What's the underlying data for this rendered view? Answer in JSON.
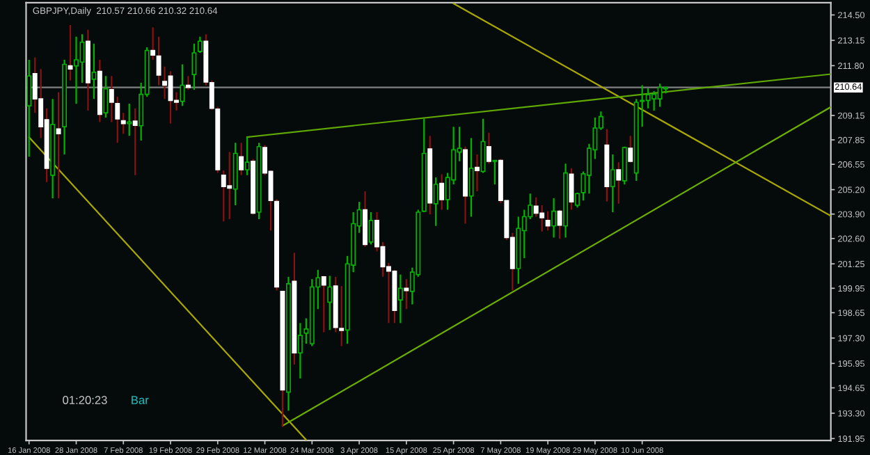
{
  "chart_data": {
    "type": "candlestick",
    "title": "GBPJPY,Daily  210.57 210.66 210.32 210.64",
    "annotations": [
      "01:20:23",
      "Bar"
    ],
    "categories": [
      "16 Jan 2008",
      null,
      null,
      null,
      null,
      null,
      null,
      null,
      "28 Jan 2008",
      null,
      null,
      null,
      null,
      null,
      null,
      null,
      "7 Feb 2008",
      null,
      null,
      null,
      null,
      null,
      null,
      null,
      "19 Feb 2008",
      null,
      null,
      null,
      null,
      null,
      null,
      null,
      "29 Feb 2008",
      null,
      null,
      null,
      null,
      null,
      null,
      null,
      "12 Mar 2008",
      null,
      null,
      null,
      null,
      null,
      null,
      null,
      "24 Mar 2008",
      null,
      null,
      null,
      null,
      null,
      null,
      null,
      "3 Apr 2008",
      null,
      null,
      null,
      null,
      null,
      null,
      null,
      "15 Apr 2008",
      null,
      null,
      null,
      null,
      null,
      null,
      null,
      "25 Apr 2008",
      null,
      null,
      null,
      null,
      null,
      null,
      null,
      "7 May 2008",
      null,
      null,
      null,
      null,
      null,
      null,
      null,
      "19 May 2008",
      null,
      null,
      null,
      null,
      null,
      null,
      null,
      "29 May 2008",
      null,
      null,
      null,
      null,
      null,
      null,
      null,
      "10 Jun 2008",
      null,
      null,
      null,
      null,
      null,
      null,
      null,
      null,
      null,
      null,
      null,
      null,
      null,
      null,
      null,
      null,
      null,
      null,
      null,
      null,
      null,
      null,
      null,
      null,
      null,
      null,
      null,
      null,
      null,
      null,
      null,
      null
    ],
    "ohlc": [
      [
        209.66,
        212.11,
        206.95,
        211.25
      ],
      [
        211.38,
        212.24,
        209.29,
        210.03
      ],
      [
        210.03,
        211.62,
        207.94,
        208.55
      ],
      [
        208.92,
        209.53,
        205.6,
        206.34
      ],
      [
        205.97,
        210.03,
        204.74,
        208.67
      ],
      [
        208.43,
        210.39,
        204.74,
        208.18
      ],
      [
        208.55,
        212.11,
        207.07,
        211.87
      ],
      [
        211.79,
        213.96,
        211.01,
        211.62
      ],
      [
        211.79,
        213.34,
        209.78,
        212.11
      ],
      [
        211.99,
        213.47,
        210.89,
        213.05
      ],
      [
        213.1,
        213.71,
        209.41,
        210.89
      ],
      [
        211.08,
        212.97,
        210.03,
        211.45
      ],
      [
        211.5,
        212.11,
        208.8,
        209.21
      ],
      [
        209.29,
        211.25,
        209.04,
        210.57
      ],
      [
        210.52,
        211.25,
        208.8,
        209.85
      ],
      [
        209.78,
        210.15,
        207.69,
        208.97
      ],
      [
        208.87,
        209.29,
        208.18,
        208.72
      ],
      [
        208.72,
        209.78,
        208.06,
        208.8
      ],
      [
        208.85,
        209.53,
        205.97,
        208.62
      ],
      [
        208.6,
        210.89,
        207.81,
        210.27
      ],
      [
        210.27,
        212.78,
        210.15,
        212.61
      ],
      [
        212.61,
        213.84,
        212.11,
        212.36
      ],
      [
        212.31,
        213.34,
        210.76,
        211.3
      ],
      [
        210.96,
        211.75,
        210.03,
        210.76
      ],
      [
        211.25,
        211.5,
        208.72,
        209.95
      ],
      [
        209.95,
        210.39,
        209.41,
        209.85
      ],
      [
        209.9,
        211.87,
        209.66,
        210.76
      ],
      [
        210.76,
        211.25,
        210.52,
        210.64
      ],
      [
        211.33,
        212.97,
        210.52,
        212.48
      ],
      [
        212.56,
        213.34,
        212.48,
        213.1
      ],
      [
        213.1,
        213.47,
        210.76,
        210.93
      ],
      [
        210.89,
        211.01,
        209.46,
        209.53
      ],
      [
        209.49,
        209.61,
        206.09,
        206.26
      ],
      [
        205.97,
        206.22,
        203.51,
        205.36
      ],
      [
        205.4,
        207.2,
        203.63,
        205.28
      ],
      [
        205.23,
        207.69,
        204.37,
        207.13
      ],
      [
        206.95,
        207.69,
        205.97,
        206.26
      ],
      [
        206.26,
        207.99,
        205.97,
        206.66
      ],
      [
        206.71,
        206.83,
        203.88,
        203.95
      ],
      [
        204.0,
        207.69,
        203.63,
        207.49
      ],
      [
        207.44,
        207.57,
        205.97,
        206.09
      ],
      [
        206.17,
        206.22,
        203.02,
        204.62
      ],
      [
        204.57,
        204.69,
        199.83,
        200.02
      ],
      [
        199.78,
        199.78,
        192.57,
        194.54
      ],
      [
        194.42,
        200.56,
        193.43,
        200.19
      ],
      [
        200.32,
        201.84,
        195.89,
        196.51
      ],
      [
        196.51,
        198.1,
        195.15,
        197.44
      ],
      [
        197.56,
        198.35,
        197.0,
        197.78
      ],
      [
        197.0,
        200.44,
        196.87,
        200.02
      ],
      [
        200.02,
        200.93,
        198.84,
        200.51
      ],
      [
        200.56,
        200.61,
        197.61,
        200.12
      ],
      [
        199.21,
        200.61,
        197.73,
        200.02
      ],
      [
        200.07,
        200.56,
        197.61,
        197.86
      ],
      [
        197.81,
        200.07,
        196.87,
        197.71
      ],
      [
        197.73,
        201.67,
        197.0,
        201.25
      ],
      [
        201.18,
        204.0,
        200.81,
        203.39
      ],
      [
        203.27,
        204.55,
        202.9,
        204.13
      ],
      [
        204.13,
        205.11,
        202.16,
        202.28
      ],
      [
        202.41,
        204.0,
        202.28,
        203.56
      ],
      [
        203.56,
        204.0,
        201.91,
        202.16
      ],
      [
        202.16,
        202.41,
        200.56,
        201.1
      ],
      [
        201.1,
        201.3,
        198.1,
        200.86
      ],
      [
        200.86,
        200.93,
        198.1,
        198.77
      ],
      [
        199.33,
        200.68,
        198.1,
        199.95
      ],
      [
        199.95,
        200.44,
        198.84,
        199.83
      ],
      [
        199.78,
        201.05,
        199.09,
        200.81
      ],
      [
        200.68,
        204.13,
        200.56,
        204.0
      ],
      [
        204.05,
        208.97,
        204.0,
        207.13
      ],
      [
        207.37,
        208.06,
        203.88,
        204.49
      ],
      [
        204.45,
        205.85,
        203.27,
        205.48
      ],
      [
        205.53,
        206.02,
        204.13,
        204.67
      ],
      [
        204.67,
        206.09,
        204.13,
        205.85
      ],
      [
        205.72,
        208.55,
        205.48,
        207.32
      ],
      [
        207.2,
        208.55,
        206.71,
        207.4
      ],
      [
        207.32,
        207.49,
        203.39,
        204.86
      ],
      [
        204.86,
        207.94,
        203.76,
        206.34
      ],
      [
        206.39,
        207.07,
        205.11,
        206.22
      ],
      [
        206.17,
        208.97,
        206.09,
        207.76
      ],
      [
        207.49,
        208.23,
        206.58,
        206.71
      ],
      [
        206.71,
        206.76,
        205.48,
        206.76
      ],
      [
        206.76,
        206.83,
        204.49,
        204.62
      ],
      [
        204.62,
        204.62,
        202.53,
        202.65
      ],
      [
        202.65,
        202.9,
        199.83,
        201.0
      ],
      [
        201.0,
        203.76,
        200.19,
        203.14
      ],
      [
        203.02,
        204.13,
        201.55,
        203.76
      ],
      [
        203.76,
        204.99,
        203.63,
        204.37
      ],
      [
        204.32,
        204.79,
        203.76,
        203.95
      ],
      [
        203.95,
        204.37,
        202.97,
        203.71
      ],
      [
        203.56,
        204.05,
        203.02,
        203.27
      ],
      [
        203.27,
        204.74,
        202.65,
        204.05
      ],
      [
        204.05,
        204.13,
        202.58,
        203.31
      ],
      [
        203.27,
        206.58,
        202.65,
        206.09
      ],
      [
        206.02,
        206.34,
        204.13,
        204.55
      ],
      [
        204.37,
        205.04,
        204.25,
        204.99
      ],
      [
        205.04,
        206.17,
        204.62,
        206.04
      ],
      [
        205.97,
        207.64,
        204.99,
        207.4
      ],
      [
        207.32,
        209.04,
        206.83,
        208.48
      ],
      [
        208.48,
        209.36,
        208.38,
        209.09
      ],
      [
        207.57,
        208.43,
        204.57,
        205.36
      ],
      [
        205.36,
        207.07,
        204.0,
        206.26
      ],
      [
        206.26,
        206.66,
        204.45,
        205.72
      ],
      [
        205.67,
        207.49,
        205.48,
        207.44
      ],
      [
        207.4,
        208.06,
        206.66,
        206.71
      ],
      [
        206.09,
        210.03,
        205.67,
        209.85
      ],
      [
        209.9,
        210.76,
        208.55,
        209.95
      ],
      [
        209.95,
        210.59,
        209.53,
        210.25
      ],
      [
        210.03,
        210.44,
        209.41,
        210.27
      ],
      [
        210.03,
        210.84,
        209.61,
        210.64
      ],
      [
        210.57,
        210.66,
        210.32,
        210.64
      ],
      null,
      null,
      null,
      null,
      null,
      null,
      null,
      null,
      null,
      null,
      null,
      null,
      null,
      null,
      null,
      null,
      null,
      null,
      null,
      null,
      null,
      null,
      null,
      null,
      null,
      null,
      null,
      null
    ],
    "series": [
      {
        "type": "line",
        "color": "#a8a800",
        "values": [
          207.99,
          null,
          null,
          null,
          null,
          null,
          null,
          null,
          null,
          null,
          null,
          null,
          null,
          null,
          null,
          null,
          null,
          null,
          null,
          null,
          null,
          null,
          null,
          null,
          null,
          null,
          null,
          null,
          null,
          null,
          null,
          null,
          null,
          null,
          null,
          null,
          null,
          null,
          null,
          null,
          null,
          null,
          null,
          null,
          null,
          null,
          null,
          191.88,
          null,
          null,
          null,
          null,
          null,
          null,
          null,
          null,
          null,
          null,
          null,
          null,
          null,
          null,
          null,
          null,
          null,
          null,
          null,
          null,
          null,
          null,
          null,
          null,
          null,
          null,
          null,
          null,
          null,
          null,
          null,
          null,
          null,
          null,
          null,
          null,
          null,
          null,
          null,
          null,
          null,
          null,
          null,
          null,
          null,
          null,
          null,
          null,
          null,
          null,
          null,
          null,
          null,
          null,
          null,
          null,
          null,
          null,
          null,
          null,
          null,
          null,
          null,
          null,
          null,
          null,
          null,
          null,
          null,
          null,
          null,
          null,
          null,
          null,
          null,
          null,
          null,
          null,
          null,
          null,
          null,
          null,
          null,
          null,
          null,
          null,
          null,
          null,
          null
        ]
      },
      {
        "type": "line",
        "color": "#a8a800",
        "values": [
          null,
          null,
          null,
          null,
          null,
          null,
          null,
          null,
          null,
          null,
          null,
          null,
          null,
          null,
          null,
          null,
          null,
          null,
          null,
          null,
          null,
          null,
          null,
          null,
          null,
          null,
          null,
          null,
          null,
          null,
          null,
          null,
          null,
          null,
          null,
          null,
          null,
          null,
          null,
          null,
          null,
          null,
          null,
          null,
          null,
          null,
          null,
          null,
          null,
          null,
          null,
          null,
          null,
          null,
          null,
          null,
          null,
          null,
          null,
          null,
          null,
          null,
          null,
          null,
          null,
          null,
          null,
          null,
          null,
          null,
          null,
          null,
          215.11,
          null,
          null,
          null,
          null,
          null,
          null,
          null,
          null,
          null,
          null,
          null,
          null,
          null,
          null,
          null,
          null,
          null,
          null,
          null,
          null,
          null,
          null,
          null,
          null,
          null,
          null,
          null,
          null,
          null,
          null,
          null,
          null,
          null,
          null,
          null,
          null,
          null,
          null,
          null,
          null,
          null,
          null,
          null,
          null,
          null,
          null,
          null,
          null,
          null,
          null,
          null,
          null,
          null,
          null,
          null,
          null,
          null,
          null,
          null,
          null,
          null,
          null,
          null,
          203.8
        ]
      },
      {
        "type": "line",
        "color": "#5fa800",
        "values": [
          null,
          null,
          null,
          null,
          null,
          null,
          null,
          null,
          null,
          null,
          null,
          null,
          null,
          null,
          null,
          null,
          null,
          null,
          null,
          null,
          null,
          null,
          null,
          null,
          null,
          null,
          null,
          null,
          null,
          null,
          null,
          null,
          null,
          null,
          null,
          null,
          null,
          208.0,
          null,
          null,
          null,
          null,
          null,
          null,
          null,
          null,
          null,
          null,
          null,
          null,
          null,
          null,
          null,
          null,
          null,
          null,
          null,
          null,
          null,
          null,
          null,
          null,
          null,
          null,
          null,
          null,
          null,
          null,
          null,
          null,
          null,
          null,
          null,
          null,
          null,
          null,
          null,
          null,
          null,
          null,
          null,
          null,
          null,
          null,
          null,
          null,
          null,
          null,
          null,
          null,
          null,
          null,
          null,
          null,
          null,
          null,
          null,
          null,
          null,
          null,
          null,
          null,
          null,
          null,
          null,
          null,
          null,
          null,
          null,
          null,
          null,
          null,
          null,
          null,
          null,
          null,
          null,
          null,
          null,
          null,
          null,
          null,
          null,
          null,
          null,
          null,
          null,
          null,
          null,
          null,
          null,
          null,
          null,
          null,
          null,
          null,
          211.35
        ]
      },
      {
        "type": "line",
        "color": "#6bb000",
        "values": [
          null,
          null,
          null,
          null,
          null,
          null,
          null,
          null,
          null,
          null,
          null,
          null,
          null,
          null,
          null,
          null,
          null,
          null,
          null,
          null,
          null,
          null,
          null,
          null,
          null,
          null,
          null,
          null,
          null,
          null,
          null,
          null,
          null,
          null,
          null,
          null,
          null,
          null,
          null,
          null,
          null,
          null,
          null,
          192.63,
          null,
          null,
          null,
          null,
          null,
          null,
          null,
          null,
          null,
          null,
          null,
          null,
          null,
          null,
          null,
          null,
          null,
          null,
          null,
          null,
          null,
          null,
          null,
          null,
          null,
          null,
          null,
          null,
          null,
          null,
          null,
          null,
          null,
          null,
          null,
          null,
          null,
          null,
          null,
          null,
          null,
          null,
          null,
          null,
          null,
          null,
          null,
          null,
          null,
          null,
          null,
          null,
          null,
          null,
          null,
          null,
          null,
          null,
          null,
          null,
          null,
          null,
          null,
          null,
          null,
          null,
          null,
          null,
          null,
          null,
          null,
          null,
          null,
          null,
          null,
          null,
          null,
          null,
          null,
          null,
          null,
          null,
          null,
          null,
          null,
          null,
          null,
          null,
          null,
          null,
          null,
          null,
          209.6
        ]
      }
    ],
    "ref_lines": [
      {
        "axis": "y",
        "value": 210.64,
        "label": "210.64",
        "color": "#808080"
      }
    ],
    "ylim": [
      191.85,
      215.15
    ],
    "yticks": [
      {
        "value": 214.5,
        "label": "214.50"
      },
      {
        "value": 213.15,
        "label": "213.15"
      },
      {
        "value": 211.8,
        "label": "211.80"
      },
      {
        "value": 209.15,
        "label": "209.15"
      },
      {
        "value": 207.85,
        "label": "207.85"
      },
      {
        "value": 206.55,
        "label": "206.55"
      },
      {
        "value": 205.2,
        "label": "205.20"
      },
      {
        "value": 203.9,
        "label": "203.90"
      },
      {
        "value": 202.6,
        "label": "202.60"
      },
      {
        "value": 201.25,
        "label": "201.25"
      },
      {
        "value": 199.95,
        "label": "199.95"
      },
      {
        "value": 198.65,
        "label": "198.65"
      },
      {
        "value": 197.3,
        "label": "197.30"
      },
      {
        "value": 195.95,
        "label": "195.95"
      },
      {
        "value": 194.65,
        "label": "194.65"
      },
      {
        "value": 193.3,
        "label": "193.30"
      },
      {
        "value": 191.95,
        "label": "191.95"
      }
    ],
    "legend": false
  }
}
